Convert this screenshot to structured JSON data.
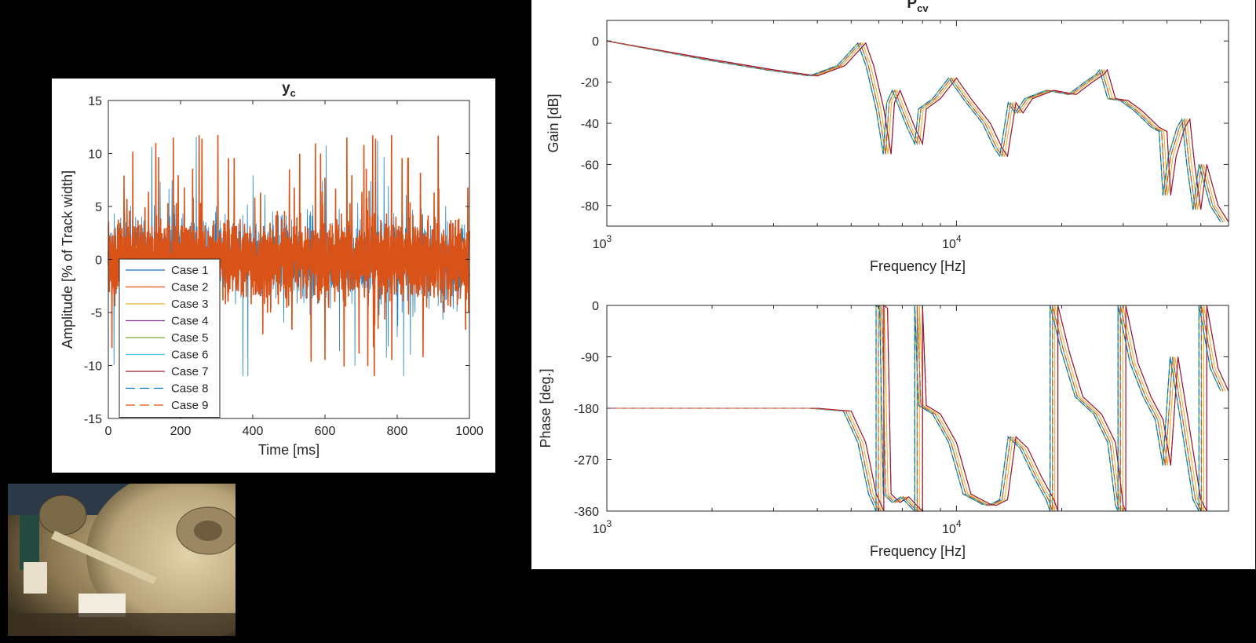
{
  "colors": {
    "background": "#000000",
    "panel": "#ffffff",
    "axis": "#262626",
    "series": [
      "#0072BD",
      "#D95319",
      "#EDB120",
      "#7E2F8E",
      "#77AC30",
      "#4DBEEE",
      "#A2142F",
      "#0072BD",
      "#D95319"
    ]
  },
  "chart_data": [
    {
      "type": "line",
      "title": "y",
      "title_sub": "c",
      "xlabel": "Time [ms]",
      "ylabel": "Amplitude [% of Track width]",
      "xlim": [
        0,
        1000
      ],
      "ylim": [
        -15,
        15
      ],
      "xticks": [
        0,
        200,
        400,
        600,
        800,
        1000
      ],
      "yticks": [
        -15,
        -10,
        -5,
        0,
        5,
        10,
        15
      ],
      "grid": false,
      "legend_position": "lower-left",
      "signal_envelope": {
        "typical_abs_max": 5,
        "peak_max": 12,
        "peak_min": -11
      },
      "series": [
        {
          "name": "Case 1",
          "style": "solid"
        },
        {
          "name": "Case 2",
          "style": "solid"
        },
        {
          "name": "Case 3",
          "style": "solid"
        },
        {
          "name": "Case 4",
          "style": "solid"
        },
        {
          "name": "Case 5",
          "style": "solid"
        },
        {
          "name": "Case 6",
          "style": "solid"
        },
        {
          "name": "Case 7",
          "style": "solid"
        },
        {
          "name": "Case 8",
          "style": "dashed"
        },
        {
          "name": "Case 9",
          "style": "dashed"
        }
      ]
    },
    {
      "type": "line",
      "title": "P",
      "title_sub": "cv",
      "xscale": "log",
      "xlabel": "Frequency [Hz]",
      "ylabel": "Gain [dB]",
      "xlim": [
        1000,
        60000
      ],
      "ylim": [
        -90,
        10
      ],
      "yticks": [
        0,
        -20,
        -40,
        -60,
        -80
      ],
      "grid": false,
      "shape": {
        "start": [
          1000,
          0
        ],
        "valley": [
          4000,
          -17
        ],
        "first_resonance_peak": [
          5500,
          -1
        ],
        "notch": [
          6500,
          -55
        ],
        "second_peak": [
          10000,
          -18
        ],
        "notch2": [
          14000,
          -56
        ],
        "third_peak_cluster": [
          27000,
          -14
        ],
        "notch3": [
          48000,
          -82
        ],
        "end": [
          60000,
          -88
        ]
      }
    },
    {
      "type": "line",
      "xscale": "log",
      "xlabel": "Frequency [Hz]",
      "ylabel": "Phase [deg.]",
      "xlim": [
        1000,
        60000
      ],
      "ylim": [
        -360,
        0
      ],
      "yticks": [
        0,
        -90,
        -180,
        -270,
        -360
      ],
      "grid": false,
      "shape": {
        "flat_level": -180,
        "phase_drop_at": 5500,
        "low_plateau": [
          13000,
          -350
        ],
        "wraps_at": [
          6200,
          8000,
          19500,
          30500,
          52000
        ]
      }
    }
  ],
  "video_thumbnail": {
    "subject": "hard-disk-drive-interior"
  }
}
